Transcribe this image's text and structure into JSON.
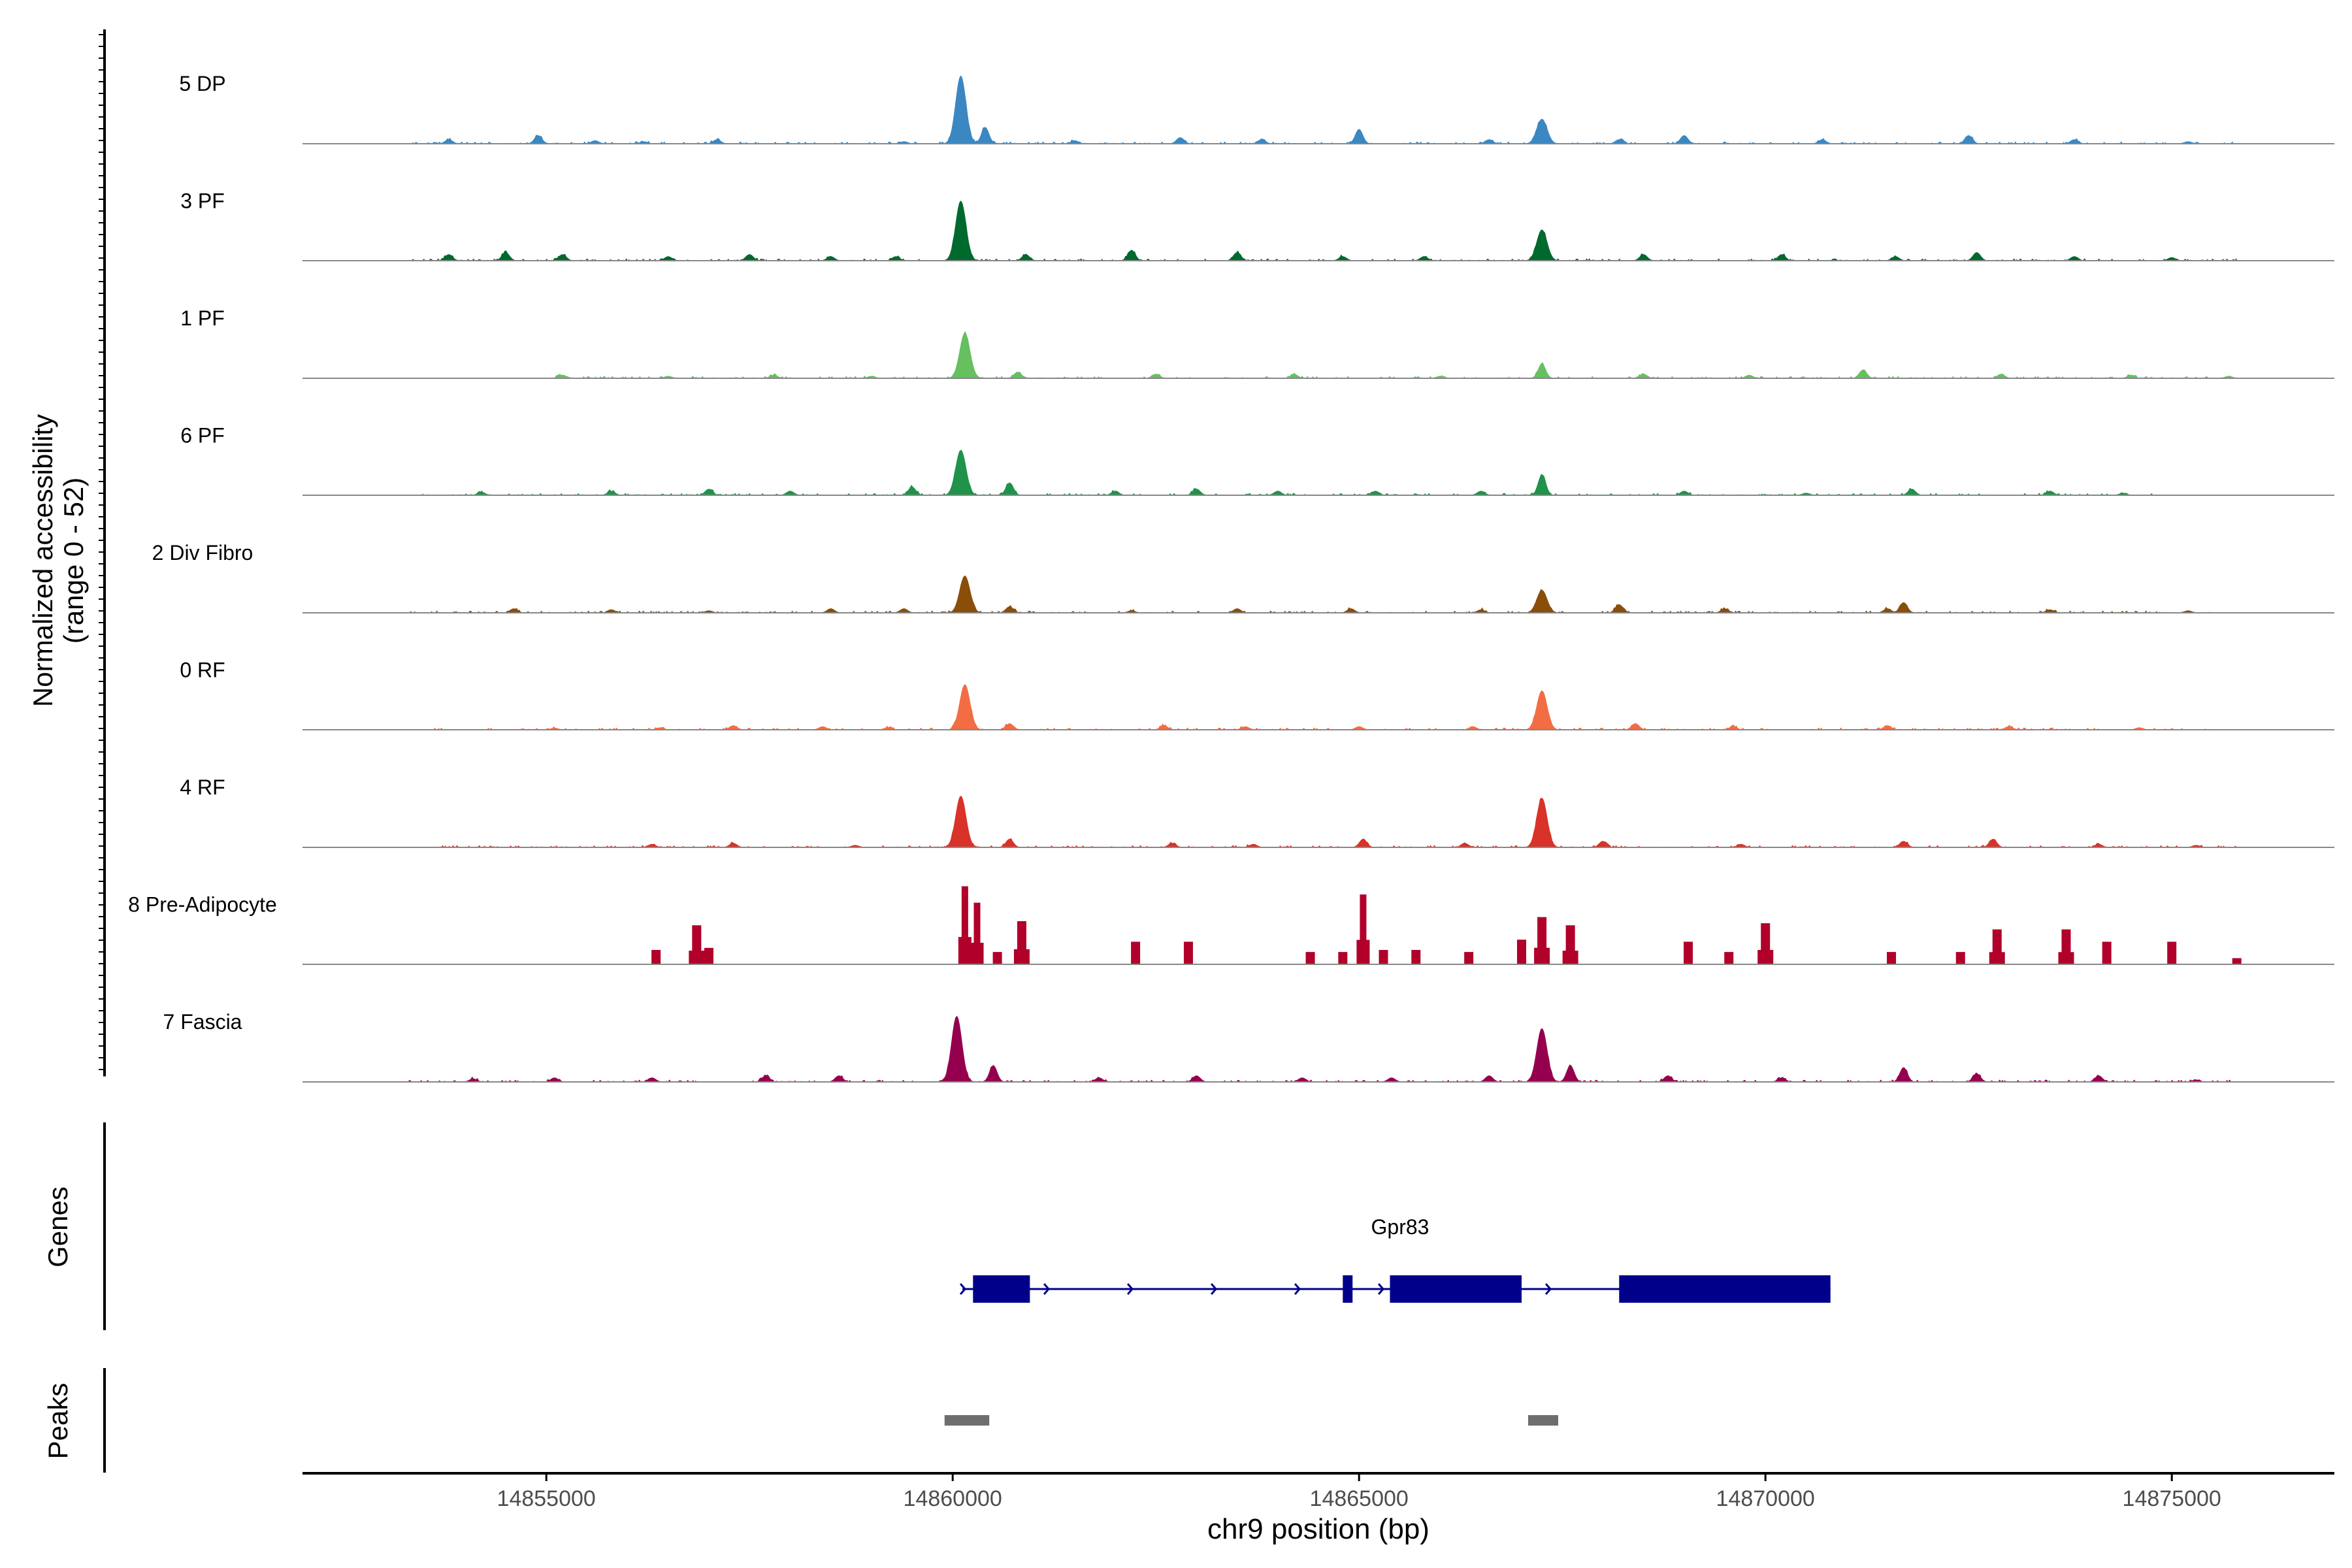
{
  "chart_data": {
    "type": "area",
    "title": "",
    "xlabel": "chr9 position (bp)",
    "ylabel_line1": "Normalized accessibility",
    "ylabel_line2": "(range 0 - 52)",
    "xlim": [
      14852000,
      14877000
    ],
    "ylim": [
      0,
      52
    ],
    "x_ticks": [
      14855000,
      14860000,
      14865000,
      14870000,
      14875000
    ],
    "x_tick_labels": [
      "14855000",
      "14860000",
      "14865000",
      "14870000",
      "14875000"
    ],
    "track_y_ticks": [
      0,
      13,
      26,
      39,
      52
    ],
    "series": [
      {
        "name": "5 DP",
        "color": "#3a87c2",
        "x_start": 14853300,
        "x_end": 14875800,
        "peaks": [
          [
            14853800,
            2
          ],
          [
            14854900,
            4
          ],
          [
            14855600,
            1.5
          ],
          [
            14856200,
            1
          ],
          [
            14857100,
            2
          ],
          [
            14859400,
            1
          ],
          [
            14860100,
            33
          ],
          [
            14860400,
            8
          ],
          [
            14861500,
            1.5
          ],
          [
            14862800,
            3
          ],
          [
            14863800,
            2
          ],
          [
            14865000,
            7
          ],
          [
            14866600,
            2
          ],
          [
            14867250,
            12
          ],
          [
            14868200,
            2
          ],
          [
            14869000,
            4
          ],
          [
            14870700,
            2
          ],
          [
            14872500,
            4
          ],
          [
            14873800,
            2
          ],
          [
            14875200,
            1
          ]
        ]
      },
      {
        "name": "3 PF",
        "color": "#00692d",
        "x_start": 14853300,
        "x_end": 14875800,
        "peaks": [
          [
            14853800,
            3
          ],
          [
            14854500,
            4
          ],
          [
            14855200,
            3
          ],
          [
            14856500,
            2
          ],
          [
            14857500,
            3
          ],
          [
            14858500,
            2
          ],
          [
            14859300,
            2
          ],
          [
            14860100,
            29
          ],
          [
            14860900,
            3
          ],
          [
            14862200,
            5
          ],
          [
            14863500,
            4
          ],
          [
            14864800,
            2
          ],
          [
            14865800,
            2
          ],
          [
            14867250,
            15
          ],
          [
            14868500,
            3
          ],
          [
            14870200,
            3
          ],
          [
            14871600,
            2
          ],
          [
            14872600,
            4
          ],
          [
            14873800,
            2
          ],
          [
            14875000,
            1.5
          ]
        ]
      },
      {
        "name": "1 PF",
        "color": "#66c060",
        "x_start": 14854800,
        "x_end": 14875800,
        "peaks": [
          [
            14855200,
            1.5
          ],
          [
            14856500,
            1
          ],
          [
            14857800,
            1.5
          ],
          [
            14859000,
            1
          ],
          [
            14860150,
            22
          ],
          [
            14860800,
            3
          ],
          [
            14862500,
            2
          ],
          [
            14864200,
            2
          ],
          [
            14866000,
            1
          ],
          [
            14867250,
            7
          ],
          [
            14868500,
            2
          ],
          [
            14869800,
            1.5
          ],
          [
            14871200,
            4
          ],
          [
            14872900,
            2
          ],
          [
            14874500,
            1.5
          ],
          [
            14875700,
            1
          ]
        ]
      },
      {
        "name": "6 PF",
        "color": "#1f9349",
        "x_start": 14853400,
        "x_end": 14874800,
        "peaks": [
          [
            14854200,
            1.5
          ],
          [
            14855800,
            2
          ],
          [
            14857000,
            3
          ],
          [
            14858000,
            2
          ],
          [
            14859500,
            4
          ],
          [
            14860100,
            22
          ],
          [
            14860700,
            6
          ],
          [
            14862000,
            2
          ],
          [
            14863000,
            3
          ],
          [
            14864000,
            2
          ],
          [
            14865200,
            2
          ],
          [
            14866500,
            2
          ],
          [
            14867250,
            10
          ],
          [
            14869000,
            2
          ],
          [
            14870500,
            1
          ],
          [
            14871800,
            3
          ],
          [
            14873500,
            2
          ],
          [
            14874400,
            1
          ]
        ]
      },
      {
        "name": "2 Div Fibro",
        "color": "#8a4e08",
        "x_start": 14853300,
        "x_end": 14875500,
        "peaks": [
          [
            14854600,
            2
          ],
          [
            14855800,
            1.5
          ],
          [
            14857000,
            1
          ],
          [
            14858500,
            2
          ],
          [
            14859400,
            2
          ],
          [
            14860150,
            18
          ],
          [
            14860700,
            3
          ],
          [
            14862200,
            1
          ],
          [
            14863500,
            2
          ],
          [
            14864900,
            2
          ],
          [
            14866500,
            1.5
          ],
          [
            14867250,
            11
          ],
          [
            14868200,
            4
          ],
          [
            14869500,
            2
          ],
          [
            14871500,
            2
          ],
          [
            14871700,
            5
          ],
          [
            14873500,
            1.5
          ],
          [
            14875200,
            1
          ]
        ]
      },
      {
        "name": "0 RF",
        "color": "#f26d44",
        "x_start": 14853500,
        "x_end": 14875500,
        "peaks": [
          [
            14855100,
            0.8
          ],
          [
            14856400,
            1
          ],
          [
            14857300,
            2
          ],
          [
            14858400,
            1.5
          ],
          [
            14859200,
            1
          ],
          [
            14860150,
            22
          ],
          [
            14860700,
            3
          ],
          [
            14862600,
            2
          ],
          [
            14863600,
            1.5
          ],
          [
            14865000,
            1.5
          ],
          [
            14866400,
            1.5
          ],
          [
            14867250,
            19
          ],
          [
            14868400,
            3
          ],
          [
            14869600,
            1.5
          ],
          [
            14871500,
            2
          ],
          [
            14873000,
            1.5
          ],
          [
            14874600,
            1
          ]
        ]
      },
      {
        "name": "4 RF",
        "color": "#d93228",
        "x_start": 14853500,
        "x_end": 14875800,
        "peaks": [
          [
            14856300,
            1.5
          ],
          [
            14857300,
            2
          ],
          [
            14858800,
            1
          ],
          [
            14860100,
            25
          ],
          [
            14860700,
            4
          ],
          [
            14862700,
            2
          ],
          [
            14863700,
            1.5
          ],
          [
            14865050,
            4
          ],
          [
            14866300,
            2
          ],
          [
            14867250,
            24
          ],
          [
            14868000,
            3
          ],
          [
            14869700,
            1.5
          ],
          [
            14871700,
            3
          ],
          [
            14872800,
            4
          ],
          [
            14874100,
            1.5
          ],
          [
            14875300,
            1
          ]
        ]
      },
      {
        "name": "8 Pre-Adipocyte",
        "color": "#b1002a",
        "x_start": 14852000,
        "x_end": 14877000,
        "bars": [
          [
            14856350,
            7
          ],
          [
            14856850,
            19
          ],
          [
            14857000,
            8
          ],
          [
            14860150,
            38
          ],
          [
            14860300,
            30
          ],
          [
            14860550,
            6
          ],
          [
            14860850,
            21
          ],
          [
            14862250,
            11
          ],
          [
            14862900,
            11
          ],
          [
            14864400,
            6
          ],
          [
            14864800,
            6
          ],
          [
            14865050,
            34
          ],
          [
            14865300,
            7
          ],
          [
            14865700,
            7
          ],
          [
            14866350,
            6
          ],
          [
            14867000,
            12
          ],
          [
            14867250,
            23
          ],
          [
            14867600,
            19
          ],
          [
            14869050,
            11
          ],
          [
            14869550,
            6
          ],
          [
            14870000,
            20
          ],
          [
            14871550,
            6
          ],
          [
            14872400,
            6
          ],
          [
            14872850,
            17
          ],
          [
            14873700,
            17
          ],
          [
            14874200,
            11
          ],
          [
            14875000,
            11
          ],
          [
            14875800,
            3
          ]
        ]
      },
      {
        "name": "7 Fascia",
        "color": "#95004e",
        "x_start": 14853300,
        "x_end": 14875800,
        "peaks": [
          [
            14854100,
            1.5
          ],
          [
            14855100,
            2
          ],
          [
            14856300,
            2
          ],
          [
            14857700,
            3
          ],
          [
            14858600,
            3
          ],
          [
            14860050,
            32
          ],
          [
            14860500,
            8
          ],
          [
            14861800,
            2
          ],
          [
            14863000,
            3
          ],
          [
            14864300,
            2
          ],
          [
            14865400,
            2
          ],
          [
            14866600,
            3
          ],
          [
            14867250,
            26
          ],
          [
            14867600,
            8
          ],
          [
            14868800,
            3
          ],
          [
            14870200,
            2
          ],
          [
            14871700,
            7
          ],
          [
            14872600,
            4
          ],
          [
            14874100,
            3
          ],
          [
            14875300,
            1
          ]
        ]
      }
    ],
    "genes_label": "Genes",
    "gene": {
      "name": "Gpr83",
      "x_start": 14860200,
      "x_end": 14870800,
      "exons": [
        [
          14860250,
          14860950
        ],
        [
          14864800,
          14864920
        ],
        [
          14865380,
          14867000
        ],
        [
          14868200,
          14870800
        ]
      ],
      "color": "#00008b"
    },
    "peaks_label": "Peaks",
    "peak_regions": [
      [
        14859900,
        14860450
      ],
      [
        14867080,
        14867450
      ]
    ],
    "peak_color": "#6e6e6e"
  }
}
